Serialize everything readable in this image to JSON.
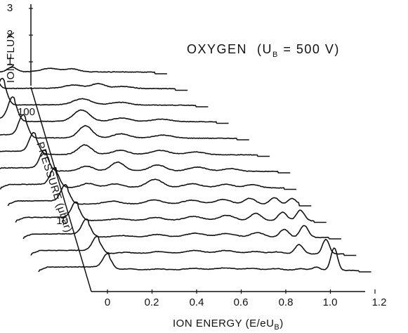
{
  "chart_data": {
    "type": "line",
    "title_main": "OXYGEN",
    "title_param": "(U",
    "title_param_sub": "B",
    "title_param_rest": " = 500 V)",
    "xlabel": "ION ENERGY (E/eU",
    "xlabel_sub": "B",
    "xlabel_close": ")",
    "ylabel": "ION FLUX",
    "zlabel": "PRESSURE (μbar)",
    "xlim": [
      -0.05,
      1.25
    ],
    "x_ticks": [
      "0",
      "0.2",
      "0.4",
      "0.6",
      "0.8",
      "1.0",
      "1.2"
    ],
    "flux_ticks": [
      "3",
      "2",
      "1"
    ],
    "pressure_ticks": [
      "100",
      "10"
    ],
    "series": [
      {
        "peaks": [
          [
            -0.01,
            1.0,
            0.02
          ],
          [
            0.08,
            0.08,
            0.035
          ],
          [
            0.22,
            0.07,
            0.035
          ],
          [
            0.38,
            0.12,
            0.04
          ],
          [
            0.52,
            0.16,
            0.04
          ],
          [
            0.64,
            0.12,
            0.035
          ],
          [
            0.75,
            0.12,
            0.03
          ],
          [
            0.86,
            0.12,
            0.025
          ],
          [
            0.93,
            0.25,
            0.018
          ],
          [
            1.01,
            1.7,
            0.015
          ]
        ]
      },
      {
        "peaks": [
          [
            -0.01,
            1.05,
            0.02
          ],
          [
            0.12,
            0.08,
            0.035
          ],
          [
            0.27,
            0.14,
            0.035
          ],
          [
            0.43,
            0.22,
            0.04
          ],
          [
            0.57,
            0.22,
            0.04
          ],
          [
            0.7,
            0.16,
            0.035
          ],
          [
            0.8,
            0.14,
            0.03
          ],
          [
            0.9,
            0.7,
            0.018
          ],
          [
            1.02,
            1.1,
            0.015
          ]
        ]
      },
      {
        "peaks": [
          [
            -0.01,
            1.1,
            0.02
          ],
          [
            0.15,
            0.1,
            0.035
          ],
          [
            0.31,
            0.18,
            0.035
          ],
          [
            0.48,
            0.28,
            0.04
          ],
          [
            0.62,
            0.26,
            0.04
          ],
          [
            0.76,
            0.35,
            0.03
          ],
          [
            0.88,
            0.6,
            0.02
          ],
          [
            0.97,
            0.9,
            0.018
          ]
        ]
      },
      {
        "peaks": [
          [
            -0.01,
            1.15,
            0.02
          ],
          [
            0.18,
            0.12,
            0.035
          ],
          [
            0.35,
            0.22,
            0.035
          ],
          [
            0.52,
            0.3,
            0.04
          ],
          [
            0.67,
            0.4,
            0.035
          ],
          [
            0.8,
            0.55,
            0.025
          ],
          [
            0.92,
            0.65,
            0.02
          ],
          [
            1.0,
            0.8,
            0.018
          ]
        ]
      },
      {
        "peaks": [
          [
            -0.01,
            1.2,
            0.02
          ],
          [
            0.2,
            0.2,
            0.035
          ],
          [
            0.39,
            0.3,
            0.035
          ],
          [
            0.56,
            0.28,
            0.04
          ],
          [
            0.7,
            0.35,
            0.035
          ],
          [
            0.82,
            0.45,
            0.025
          ],
          [
            0.93,
            0.5,
            0.02
          ],
          [
            1.01,
            0.45,
            0.018
          ]
        ]
      },
      {
        "peaks": [
          [
            -0.01,
            1.25,
            0.02
          ],
          [
            0.14,
            0.3,
            0.03
          ],
          [
            0.26,
            0.25,
            0.035
          ],
          [
            0.44,
            0.6,
            0.035
          ],
          [
            0.61,
            0.28,
            0.04
          ],
          [
            0.76,
            0.25,
            0.035
          ],
          [
            0.88,
            0.25,
            0.03
          ]
        ]
      },
      {
        "peaks": [
          [
            -0.01,
            1.3,
            0.02
          ],
          [
            0.18,
            0.35,
            0.03
          ],
          [
            0.32,
            0.65,
            0.03
          ],
          [
            0.5,
            0.45,
            0.035
          ],
          [
            0.68,
            0.3,
            0.04
          ],
          [
            0.83,
            0.2,
            0.035
          ]
        ]
      },
      {
        "peaks": [
          [
            -0.01,
            1.4,
            0.02
          ],
          [
            0.22,
            0.7,
            0.03
          ],
          [
            0.38,
            0.3,
            0.035
          ],
          [
            0.56,
            0.3,
            0.04
          ],
          [
            0.72,
            0.2,
            0.04
          ]
        ]
      },
      {
        "peaks": [
          [
            -0.01,
            1.5,
            0.02
          ],
          [
            0.27,
            0.9,
            0.03
          ],
          [
            0.43,
            0.3,
            0.035
          ],
          [
            0.62,
            0.22,
            0.04
          ]
        ]
      },
      {
        "peaks": [
          [
            -0.01,
            1.6,
            0.02
          ],
          [
            0.3,
            0.85,
            0.035
          ],
          [
            0.48,
            0.25,
            0.04
          ],
          [
            0.66,
            0.18,
            0.04
          ]
        ]
      },
      {
        "peaks": [
          [
            -0.01,
            1.75,
            0.02
          ],
          [
            0.35,
            0.45,
            0.04
          ],
          [
            0.52,
            0.2,
            0.04
          ]
        ]
      },
      {
        "peaks": [
          [
            -0.01,
            1.9,
            0.02
          ],
          [
            0.36,
            0.25,
            0.04
          ],
          [
            0.47,
            0.35,
            0.03
          ],
          [
            0.58,
            0.15,
            0.04
          ]
        ]
      },
      {
        "peaks": [
          [
            -0.01,
            2.05,
            0.02
          ],
          [
            0.13,
            0.35,
            0.02
          ],
          [
            0.3,
            0.25,
            0.04
          ],
          [
            0.4,
            0.22,
            0.03
          ]
        ]
      }
    ]
  }
}
